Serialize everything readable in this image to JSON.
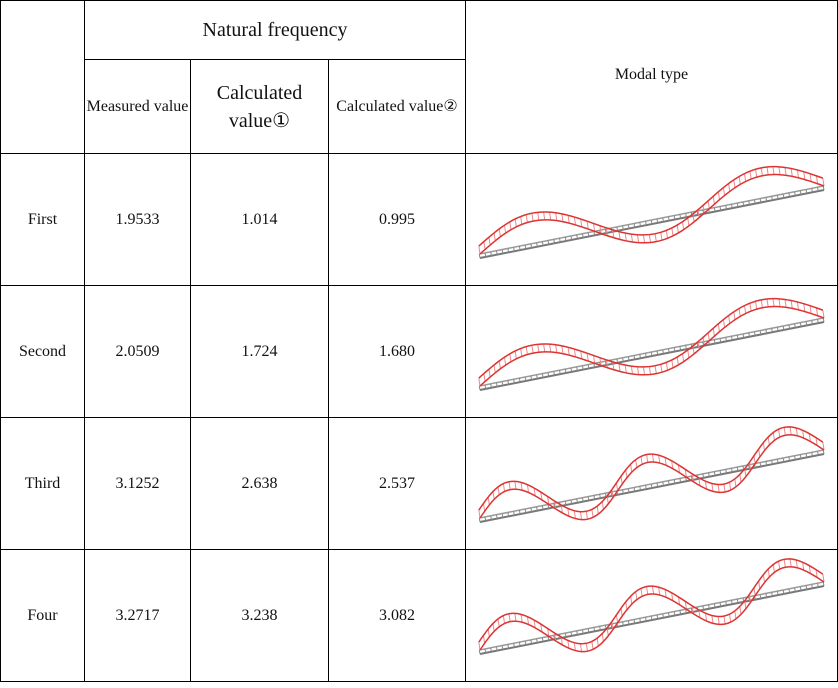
{
  "table": {
    "header": {
      "group": "Natural frequency",
      "columns": [
        "Measured value",
        "Calculated value①",
        "Calculated value②"
      ],
      "modal": "Modal type"
    },
    "rows": [
      [
        "First",
        "1.9533",
        "1.014",
        "0.995"
      ],
      [
        "Second",
        "2.0509",
        "1.724",
        "1.680"
      ],
      [
        "Third",
        "3.1252",
        "2.638",
        "2.537"
      ],
      [
        "Four",
        "3.2717",
        "3.238",
        "3.082"
      ]
    ]
  }
}
